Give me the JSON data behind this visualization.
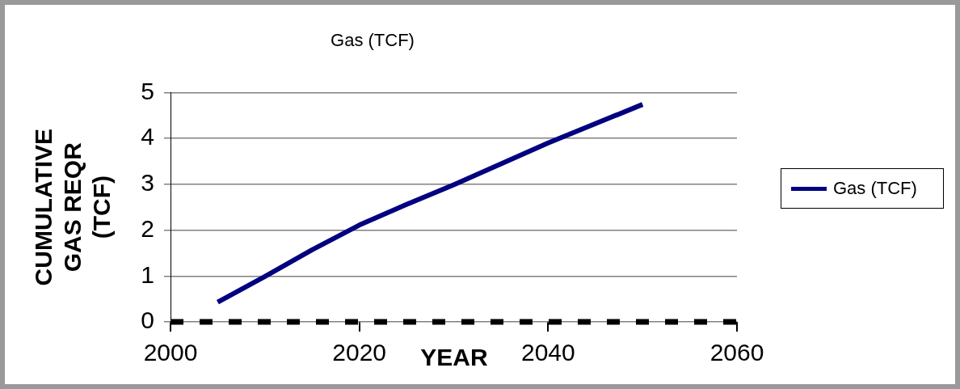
{
  "chart_data": {
    "type": "line",
    "title": "Gas (TCF)",
    "xlabel": "YEAR",
    "ylabel": "CUMULATIVE GAS REQR (TCF)",
    "x": [
      2005,
      2010,
      2015,
      2020,
      2025,
      2030,
      2040,
      2050
    ],
    "series": [
      {
        "name": "Gas (TCF)",
        "color": "#000080",
        "values": [
          0.43,
          0.99,
          1.57,
          2.11,
          2.56,
          2.99,
          3.9,
          4.74
        ]
      }
    ],
    "xlim": [
      2000,
      2060
    ],
    "xticks": [
      2000,
      2020,
      2040,
      2060
    ],
    "ylim": [
      0,
      5
    ],
    "yticks": [
      0,
      1,
      2,
      3,
      4,
      5
    ],
    "grid": "y",
    "legend": "right",
    "marker": "none",
    "line_style": "solid"
  }
}
